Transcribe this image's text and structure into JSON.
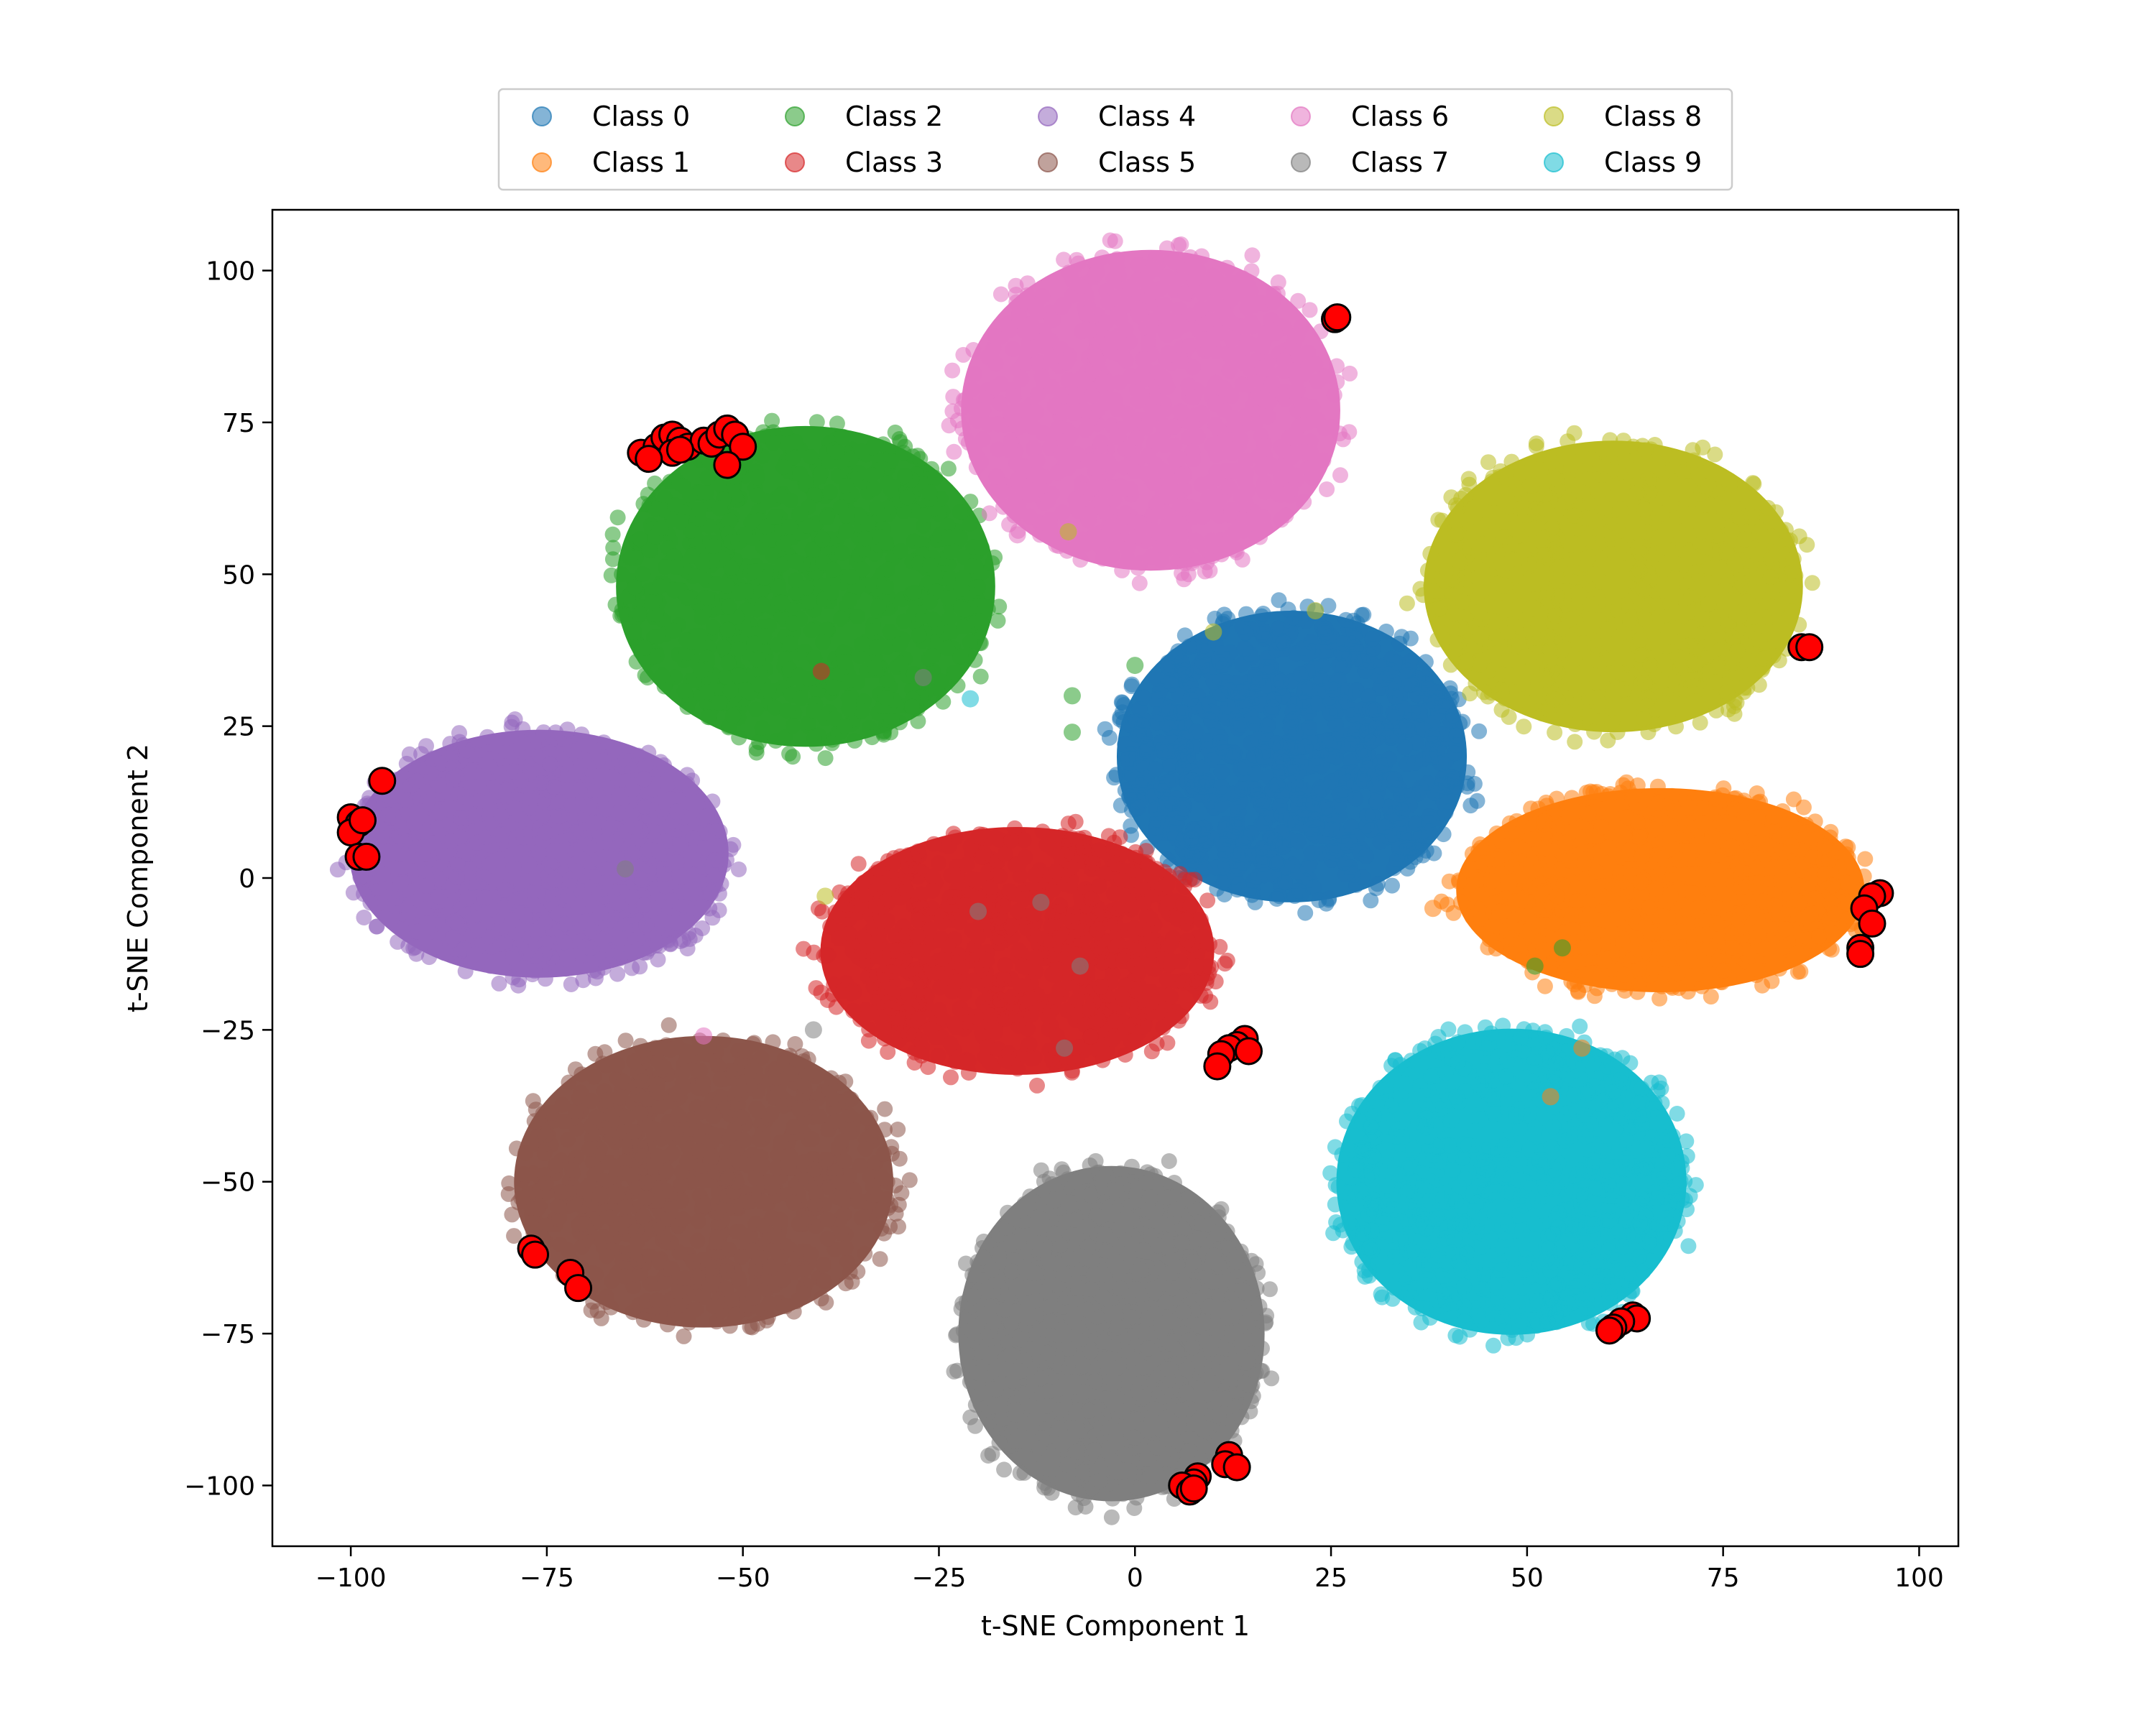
{
  "chart_data": {
    "type": "scatter",
    "title": "",
    "xlabel": "t-SNE Component 1",
    "ylabel": "t-SNE Component 2",
    "xlim": [
      -110,
      105
    ],
    "ylim": [
      -110,
      110
    ],
    "xticks": [
      -100,
      -75,
      -50,
      -25,
      0,
      25,
      50,
      75,
      100
    ],
    "yticks": [
      -100,
      -75,
      -50,
      -25,
      0,
      25,
      50,
      75,
      100
    ],
    "xtick_labels": [
      "−100",
      "−75",
      "−50",
      "−25",
      "0",
      "25",
      "50",
      "75",
      "100"
    ],
    "ytick_labels": [
      "−100",
      "−75",
      "−50",
      "−25",
      "0",
      "25",
      "50",
      "75",
      "100"
    ],
    "grid": false,
    "legend_position": "upper-center, above plot",
    "series": [
      {
        "name": "Class 0",
        "color": "#1f77b4",
        "cluster_center": [
          20,
          20
        ],
        "cluster_spread": [
          24,
          20
        ]
      },
      {
        "name": "Class 1",
        "color": "#ff7f0e",
        "cluster_center": [
          67,
          -2
        ],
        "cluster_spread": [
          28,
          14
        ]
      },
      {
        "name": "Class 2",
        "color": "#2ca02c",
        "cluster_center": [
          -42,
          48
        ],
        "cluster_spread": [
          26,
          22
        ]
      },
      {
        "name": "Class 3",
        "color": "#d62728",
        "cluster_center": [
          -15,
          -12
        ],
        "cluster_spread": [
          27,
          17
        ]
      },
      {
        "name": "Class 4",
        "color": "#9467bd",
        "cluster_center": [
          -76,
          4
        ],
        "cluster_spread": [
          26,
          17
        ]
      },
      {
        "name": "Class 5",
        "color": "#8c564b",
        "cluster_center": [
          -55,
          -50
        ],
        "cluster_spread": [
          26,
          20
        ]
      },
      {
        "name": "Class 6",
        "color": "#e377c2",
        "cluster_center": [
          2,
          77
        ],
        "cluster_spread": [
          26,
          22
        ]
      },
      {
        "name": "Class 7",
        "color": "#7f7f7f",
        "cluster_center": [
          -3,
          -75
        ],
        "cluster_spread": [
          21,
          23
        ]
      },
      {
        "name": "Class 8",
        "color": "#bcbd22",
        "cluster_center": [
          61,
          48
        ],
        "cluster_spread": [
          26,
          20
        ]
      },
      {
        "name": "Class 9",
        "color": "#17becf",
        "cluster_center": [
          48,
          -50
        ],
        "cluster_spread": [
          24,
          21
        ]
      }
    ],
    "highlighted_points": {
      "color": "#ff0000",
      "edge_color": "#000000",
      "points": [
        [
          25.5,
          92
        ],
        [
          25.8,
          92.3
        ],
        [
          -63,
          70
        ],
        [
          -61,
          71
        ],
        [
          -60,
          72.5
        ],
        [
          -59,
          73
        ],
        [
          -58,
          72
        ],
        [
          -59,
          70
        ],
        [
          -57,
          71
        ],
        [
          -55,
          72
        ],
        [
          -54,
          71.5
        ],
        [
          -53,
          73
        ],
        [
          -52,
          74
        ],
        [
          -51,
          73
        ],
        [
          -50,
          71
        ],
        [
          -52,
          68
        ],
        [
          -58,
          70.5
        ],
        [
          -62,
          69
        ],
        [
          85,
          38
        ],
        [
          86,
          38
        ],
        [
          -96,
          16
        ],
        [
          -100,
          10
        ],
        [
          -99,
          9
        ],
        [
          -100,
          7.5
        ],
        [
          -98.5,
          9.5
        ],
        [
          -99,
          3.5
        ],
        [
          -98,
          3.5
        ],
        [
          95,
          -2.5
        ],
        [
          94,
          -3
        ],
        [
          93,
          -5
        ],
        [
          94,
          -7.5
        ],
        [
          92.5,
          -11.5
        ],
        [
          92.5,
          -12.5
        ],
        [
          14,
          -26.5
        ],
        [
          13,
          -27.5
        ],
        [
          12,
          -28
        ],
        [
          11,
          -29
        ],
        [
          10.5,
          -31
        ],
        [
          14.5,
          -28.5
        ],
        [
          -77,
          -61
        ],
        [
          -76.5,
          -62
        ],
        [
          -72,
          -65
        ],
        [
          -71,
          -67.5
        ],
        [
          63.5,
          -72
        ],
        [
          64,
          -72.5
        ],
        [
          62,
          -73
        ],
        [
          61,
          -74
        ],
        [
          60.5,
          -74.5
        ],
        [
          12,
          -95
        ],
        [
          11.5,
          -96.5
        ],
        [
          13,
          -97
        ],
        [
          8,
          -98.5
        ],
        [
          7.5,
          -99.5
        ],
        [
          6,
          -100
        ],
        [
          7,
          -101
        ],
        [
          7.5,
          -100.5
        ]
      ]
    },
    "stray_points": [
      {
        "class": "Class 3",
        "x": -40,
        "y": 34
      },
      {
        "class": "Class 7",
        "x": -27,
        "y": 33
      },
      {
        "class": "Class 9",
        "x": -21,
        "y": 29.5
      },
      {
        "class": "Class 2",
        "x": -8,
        "y": 30
      },
      {
        "class": "Class 2",
        "x": -8,
        "y": 24
      },
      {
        "class": "Class 2",
        "x": 0,
        "y": 35
      },
      {
        "class": "Class 8",
        "x": 10,
        "y": 40.5
      },
      {
        "class": "Class 8",
        "x": 23,
        "y": 44
      },
      {
        "class": "Class 6",
        "x": -15,
        "y": 56.5
      },
      {
        "class": "Class 8",
        "x": -8.5,
        "y": 57
      },
      {
        "class": "Class 7",
        "x": -65,
        "y": 1.5
      },
      {
        "class": "Class 8",
        "x": -39.5,
        "y": -3
      },
      {
        "class": "Class 7",
        "x": -20,
        "y": -5.5
      },
      {
        "class": "Class 7",
        "x": -12,
        "y": -4
      },
      {
        "class": "Class 7",
        "x": -7,
        "y": -14.5
      },
      {
        "class": "Class 7",
        "x": -9,
        "y": -28
      },
      {
        "class": "Class 6",
        "x": -55,
        "y": -26
      },
      {
        "class": "Class 7",
        "x": -41,
        "y": -25
      },
      {
        "class": "Class 1",
        "x": 38,
        "y": -5
      },
      {
        "class": "Class 2",
        "x": 51,
        "y": -14.5
      },
      {
        "class": "Class 2",
        "x": 54.5,
        "y": -11.5
      },
      {
        "class": "Class 1",
        "x": 57,
        "y": -28
      },
      {
        "class": "Class 1",
        "x": 53,
        "y": -36
      }
    ]
  }
}
